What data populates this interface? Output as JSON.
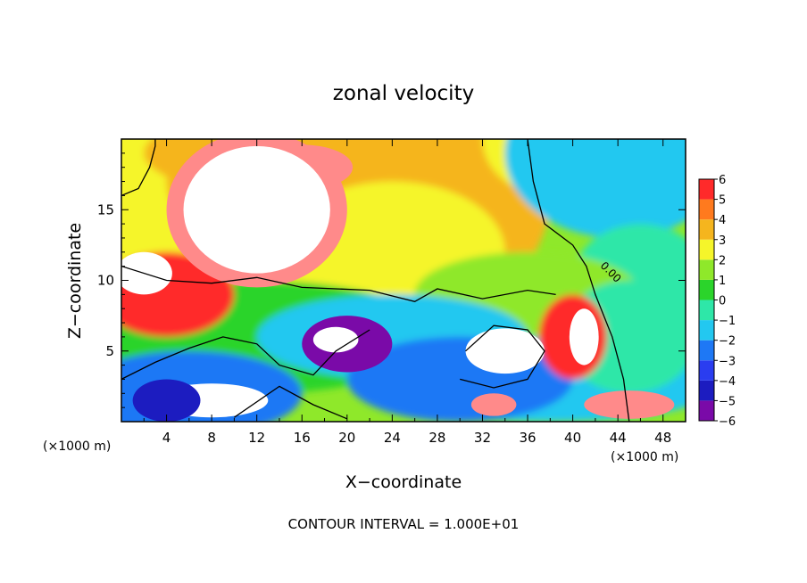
{
  "chart_data": {
    "type": "heatmap",
    "title": "zonal velocity",
    "xlabel": "X−coordinate",
    "ylabel": "Z−coordinate",
    "x_unit_label": "(×1000 m)",
    "y_unit_label": "(×1000 m)",
    "xlim": [
      0,
      50
    ],
    "ylim": [
      0,
      20
    ],
    "x_ticks": [
      4,
      8,
      12,
      16,
      20,
      24,
      28,
      32,
      36,
      40,
      44,
      48
    ],
    "x_tick_labels": [
      "4",
      "8",
      "12",
      "16",
      "20",
      "24",
      "28",
      "32",
      "36",
      "40",
      "44",
      "48"
    ],
    "y_ticks": [
      5,
      10,
      15
    ],
    "y_tick_labels": [
      "5",
      "10",
      "15"
    ],
    "colorbar": {
      "levels": [
        -6,
        -5,
        -4,
        -3,
        -2,
        -1,
        0,
        1,
        2,
        3,
        4,
        5,
        6
      ],
      "labels": [
        "−6",
        "−5",
        "−4",
        "−3",
        "−2",
        "−1",
        "0",
        "1",
        "2",
        "3",
        "4",
        "5",
        "6"
      ],
      "colors": [
        "#7a0aa8",
        "#1c1cc0",
        "#2a3df0",
        "#1e78f5",
        "#23c8f0",
        "#2ee7a8",
        "#2bd42b",
        "#8fe82a",
        "#f5f52a",
        "#f5b51e",
        "#ff7a1e",
        "#ff2a2a",
        "#ff8a8a",
        "#ffffff"
      ]
    },
    "contour_label": "0.00",
    "footer": "CONTOUR INTERVAL = 1.000E+01"
  }
}
